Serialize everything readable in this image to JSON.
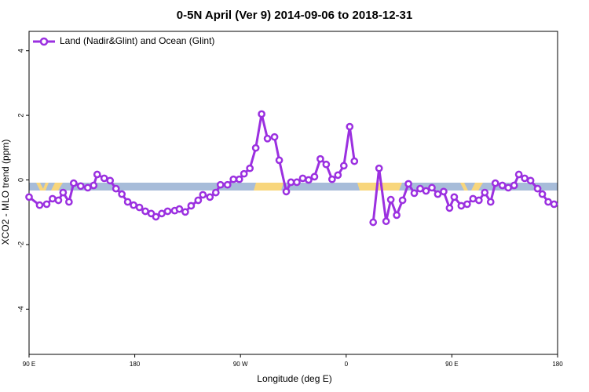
{
  "chart_data": {
    "type": "line",
    "title": "0-5N April (Ver 9)   2014-09-06 to 2018-12-31",
    "x_label": "Longitude (deg E)",
    "y_label": "XCO2 - MLO trend (ppm)",
    "x": [
      90,
      99,
      105,
      110,
      115,
      119,
      124,
      128,
      134,
      140,
      145,
      148,
      154,
      159,
      164,
      169,
      174,
      179,
      184,
      189,
      194,
      198,
      203,
      208,
      214,
      218,
      223,
      228,
      234,
      238,
      244,
      249,
      253,
      259,
      264,
      269,
      273,
      278,
      283,
      288,
      293,
      299,
      303,
      309,
      313,
      318,
      323,
      328,
      333,
      338,
      343,
      348,
      353,
      358,
      363,
      367,
      375,
      383,
      388,
      394,
      398,
      403,
      408,
      413,
      418,
      423,
      428,
      433,
      438,
      443,
      448,
      452,
      458,
      463,
      468,
      473,
      478,
      483,
      487,
      493,
      498,
      503,
      507,
      512,
      517,
      523,
      527,
      532,
      537
    ],
    "series": [
      {
        "name": "Land (Nadir&Glint) and Ocean (Glint)",
        "color": "#9b30e0",
        "values": [
          -0.53,
          -0.78,
          -0.75,
          -0.58,
          -0.63,
          -0.39,
          -0.68,
          -0.1,
          -0.19,
          -0.24,
          -0.17,
          0.17,
          0.05,
          -0.02,
          -0.27,
          -0.44,
          -0.68,
          -0.78,
          -0.85,
          -0.97,
          -1.04,
          -1.14,
          -1.04,
          -0.97,
          -0.95,
          -0.9,
          -0.99,
          -0.8,
          -0.63,
          -0.46,
          -0.53,
          -0.39,
          -0.15,
          -0.15,
          0.02,
          0.02,
          0.19,
          0.36,
          0.99,
          2.04,
          1.28,
          1.33,
          0.61,
          -0.36,
          -0.07,
          -0.07,
          0.05,
          0,
          0.1,
          0.65,
          0.48,
          0.02,
          0.15,
          0.44,
          1.65,
          0.58,
          null,
          -1.31,
          0.36,
          -1.28,
          -0.61,
          -1.09,
          -0.63,
          -0.12,
          -0.41,
          -0.27,
          -0.34,
          -0.24,
          -0.44,
          -0.36,
          -0.87,
          -0.53,
          -0.8,
          -0.75,
          -0.58,
          -0.63,
          -0.39,
          -0.68,
          -0.1,
          -0.17,
          -0.24,
          -0.17,
          0.17,
          0.05,
          -0.02,
          -0.27,
          -0.44,
          -0.68,
          -0.75
        ]
      }
    ],
    "xlim": [
      90,
      540
    ],
    "xticks": [
      {
        "value": 90,
        "label": "90 E"
      },
      180,
      {
        "value": 270,
        "label": "90 W"
      },
      {
        "value": 360,
        "label": "0"
      },
      {
        "value": 450,
        "label": "90 E"
      },
      {
        "value": 540,
        "label": "180"
      }
    ],
    "ylim": [
      -5.4,
      4.6
    ],
    "yticks": [
      -4,
      -2,
      0,
      2,
      4
    ],
    "legend": "top-left"
  }
}
